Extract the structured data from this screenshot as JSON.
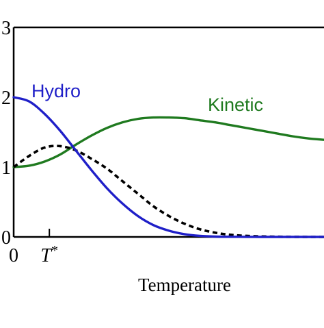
{
  "chart_data": {
    "type": "line",
    "title": "",
    "xlabel": "Temperature",
    "ylabel": "",
    "xlim": [
      0,
      10
    ],
    "ylim": [
      0,
      3
    ],
    "y_ticks": [
      {
        "value": 0,
        "label": "0"
      },
      {
        "value": 1,
        "label": "1"
      },
      {
        "value": 2,
        "label": "2"
      },
      {
        "value": 3,
        "label": "3"
      }
    ],
    "x_ticks": [
      {
        "value": 0,
        "label": "0"
      },
      {
        "value": 1.15,
        "label": "T*"
      }
    ],
    "grid": false,
    "series": [
      {
        "name": "Hydro",
        "color": "#1f1fc8",
        "style": "solid",
        "x": [
          0,
          0.5,
          1,
          1.5,
          2,
          2.5,
          3,
          3.5,
          4,
          4.5,
          5,
          5.5,
          6,
          6.5,
          7,
          7.5,
          8,
          8.5,
          9,
          9.5,
          10
        ],
        "y": [
          2.0,
          1.94,
          1.76,
          1.52,
          1.24,
          0.96,
          0.7,
          0.48,
          0.3,
          0.17,
          0.09,
          0.04,
          0.015,
          0.005,
          0.002,
          0.001,
          0,
          0,
          0,
          0,
          0
        ]
      },
      {
        "name": "Kinetic",
        "color": "#1f7a1f",
        "style": "solid",
        "x": [
          0,
          0.5,
          1,
          1.5,
          2,
          2.5,
          3,
          3.5,
          4,
          4.5,
          5,
          5.5,
          6,
          6.5,
          7,
          7.5,
          8,
          8.5,
          9,
          9.5,
          10
        ],
        "y": [
          1.0,
          1.02,
          1.08,
          1.18,
          1.32,
          1.45,
          1.56,
          1.64,
          1.69,
          1.71,
          1.71,
          1.7,
          1.67,
          1.64,
          1.6,
          1.56,
          1.52,
          1.48,
          1.44,
          1.41,
          1.39
        ]
      },
      {
        "name": "",
        "color": "#000000",
        "style": "dashed",
        "x": [
          0,
          0.5,
          1,
          1.5,
          2,
          2.5,
          3,
          3.5,
          4,
          4.5,
          5,
          5.5,
          6,
          6.5,
          7,
          7.5,
          8,
          8.5,
          9,
          9.5,
          10
        ],
        "y": [
          1.0,
          1.16,
          1.28,
          1.3,
          1.24,
          1.12,
          0.98,
          0.8,
          0.62,
          0.44,
          0.3,
          0.19,
          0.11,
          0.06,
          0.03,
          0.015,
          0.007,
          0.003,
          0.001,
          0,
          0
        ]
      }
    ],
    "annotations": [
      {
        "text": "Hydro",
        "series": "Hydro"
      },
      {
        "text": "Kinetic",
        "series": "Kinetic"
      }
    ]
  }
}
